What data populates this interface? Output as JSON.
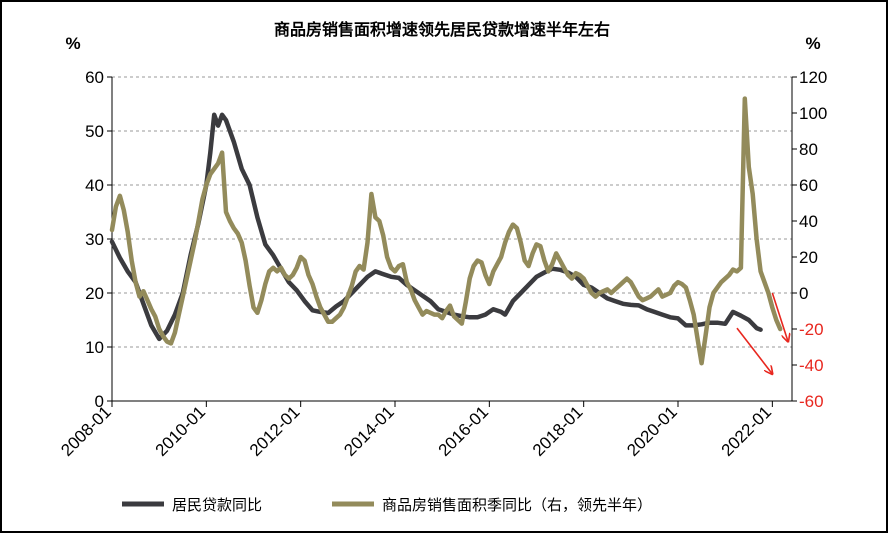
{
  "chart_data": {
    "type": "line",
    "title": "商品房销售面积增速领先居民贷款增速半年左右",
    "y_left_unit": "%",
    "y_right_unit": "%",
    "y_left_range": [
      0,
      60
    ],
    "y_left_ticks": [
      "0",
      "10",
      "20",
      "30",
      "40",
      "50",
      "60"
    ],
    "y_right_range": [
      -60,
      120
    ],
    "y_right_ticks": [
      "-60",
      "-40",
      "-20",
      "0",
      "20",
      "40",
      "60",
      "80",
      "100",
      "120"
    ],
    "x_range": [
      "2008-01",
      "2022-06"
    ],
    "x_ticks": [
      "2008-01",
      "2010-01",
      "2012-01",
      "2014-01",
      "2016-01",
      "2018-01",
      "2020-01",
      "2022-01"
    ],
    "grid": "horizontal dashed",
    "legend_position": "bottom",
    "series": [
      {
        "name": "居民贷款同比",
        "axis": "left",
        "color": "#3b3b3f",
        "points": [
          [
            "2008-01",
            29.5
          ],
          [
            "2008-03",
            26.5
          ],
          [
            "2008-05",
            24
          ],
          [
            "2008-07",
            22
          ],
          [
            "2008-09",
            18
          ],
          [
            "2008-11",
            14
          ],
          [
            "2009-01",
            11.5
          ],
          [
            "2009-03",
            13
          ],
          [
            "2009-05",
            16
          ],
          [
            "2009-07",
            20
          ],
          [
            "2009-09",
            27
          ],
          [
            "2009-11",
            33
          ],
          [
            "2010-01",
            40
          ],
          [
            "2010-02",
            46
          ],
          [
            "2010-03",
            53
          ],
          [
            "2010-04",
            51
          ],
          [
            "2010-05",
            53
          ],
          [
            "2010-06",
            52
          ],
          [
            "2010-08",
            48
          ],
          [
            "2010-10",
            43
          ],
          [
            "2010-12",
            40
          ],
          [
            "2011-02",
            34
          ],
          [
            "2011-04",
            29
          ],
          [
            "2011-06",
            27
          ],
          [
            "2011-08",
            24.5
          ],
          [
            "2011-10",
            22
          ],
          [
            "2011-12",
            20.5
          ],
          [
            "2012-02",
            18.5
          ],
          [
            "2012-04",
            16.8
          ],
          [
            "2012-06",
            16.5
          ],
          [
            "2012-08",
            16.3
          ],
          [
            "2012-10",
            17.5
          ],
          [
            "2012-12",
            18.5
          ],
          [
            "2013-02",
            20
          ],
          [
            "2013-04",
            21.5
          ],
          [
            "2013-06",
            23
          ],
          [
            "2013-08",
            24
          ],
          [
            "2013-10",
            23.5
          ],
          [
            "2013-12",
            23
          ],
          [
            "2014-02",
            22.8
          ],
          [
            "2014-04",
            21.5
          ],
          [
            "2014-06",
            20.5
          ],
          [
            "2014-08",
            19.5
          ],
          [
            "2014-10",
            18.5
          ],
          [
            "2014-12",
            17
          ],
          [
            "2015-02",
            16.5
          ],
          [
            "2015-04",
            16
          ],
          [
            "2015-06",
            15.7
          ],
          [
            "2015-08",
            15.5
          ],
          [
            "2015-10",
            15.5
          ],
          [
            "2015-12",
            16
          ],
          [
            "2016-02",
            17
          ],
          [
            "2016-04",
            16.5
          ],
          [
            "2016-05",
            16
          ],
          [
            "2016-07",
            18.5
          ],
          [
            "2016-09",
            20
          ],
          [
            "2016-11",
            21.5
          ],
          [
            "2017-01",
            23
          ],
          [
            "2017-03",
            23.8
          ],
          [
            "2017-05",
            24.5
          ],
          [
            "2017-07",
            24.3
          ],
          [
            "2017-09",
            23.8
          ],
          [
            "2017-11",
            23
          ],
          [
            "2018-01",
            21.5
          ],
          [
            "2018-03",
            21
          ],
          [
            "2018-05",
            20
          ],
          [
            "2018-07",
            19
          ],
          [
            "2018-09",
            18.5
          ],
          [
            "2018-11",
            18
          ],
          [
            "2019-01",
            17.8
          ],
          [
            "2019-03",
            17.7
          ],
          [
            "2019-05",
            17
          ],
          [
            "2019-07",
            16.5
          ],
          [
            "2019-09",
            16
          ],
          [
            "2019-11",
            15.5
          ],
          [
            "2020-01",
            15.3
          ],
          [
            "2020-03",
            14
          ],
          [
            "2020-05",
            14
          ],
          [
            "2020-07",
            14.2
          ],
          [
            "2020-09",
            14.5
          ],
          [
            "2020-11",
            14.5
          ],
          [
            "2021-01",
            14.3
          ],
          [
            "2021-03",
            16.5
          ],
          [
            "2021-05",
            15.8
          ],
          [
            "2021-07",
            15
          ],
          [
            "2021-09",
            13.5
          ],
          [
            "2021-10",
            13.2
          ]
        ]
      },
      {
        "name": "商品房销售面积季同比（右，领先半年）",
        "axis": "right",
        "color": "#938b5b",
        "points": [
          [
            "2008-01",
            35
          ],
          [
            "2008-02",
            48
          ],
          [
            "2008-03",
            54
          ],
          [
            "2008-04",
            46
          ],
          [
            "2008-05",
            34
          ],
          [
            "2008-06",
            18
          ],
          [
            "2008-07",
            6
          ],
          [
            "2008-08",
            -2
          ],
          [
            "2008-09",
            1
          ],
          [
            "2008-10",
            -4
          ],
          [
            "2008-11",
            -9
          ],
          [
            "2008-12",
            -13
          ],
          [
            "2009-01",
            -20
          ],
          [
            "2009-02",
            -24
          ],
          [
            "2009-03",
            -27
          ],
          [
            "2009-04",
            -28
          ],
          [
            "2009-05",
            -22
          ],
          [
            "2009-06",
            -12
          ],
          [
            "2009-07",
            -2
          ],
          [
            "2009-08",
            8
          ],
          [
            "2009-09",
            18
          ],
          [
            "2009-10",
            28
          ],
          [
            "2009-11",
            40
          ],
          [
            "2009-12",
            52
          ],
          [
            "2010-01",
            60
          ],
          [
            "2010-02",
            66
          ],
          [
            "2010-03",
            69
          ],
          [
            "2010-04",
            72
          ],
          [
            "2010-05",
            78
          ],
          [
            "2010-06",
            45
          ],
          [
            "2010-07",
            40
          ],
          [
            "2010-08",
            36
          ],
          [
            "2010-09",
            33
          ],
          [
            "2010-10",
            28
          ],
          [
            "2010-11",
            18
          ],
          [
            "2010-12",
            4
          ],
          [
            "2011-01",
            -8
          ],
          [
            "2011-02",
            -11
          ],
          [
            "2011-03",
            -4
          ],
          [
            "2011-04",
            5
          ],
          [
            "2011-05",
            12
          ],
          [
            "2011-06",
            14
          ],
          [
            "2011-07",
            12
          ],
          [
            "2011-08",
            14
          ],
          [
            "2011-09",
            10
          ],
          [
            "2011-10",
            8
          ],
          [
            "2011-11",
            10
          ],
          [
            "2011-12",
            14
          ],
          [
            "2012-01",
            20
          ],
          [
            "2012-02",
            18
          ],
          [
            "2012-03",
            10
          ],
          [
            "2012-04",
            5
          ],
          [
            "2012-05",
            -2
          ],
          [
            "2012-06",
            -8
          ],
          [
            "2012-07",
            -12
          ],
          [
            "2012-08",
            -16
          ],
          [
            "2012-09",
            -16
          ],
          [
            "2012-10",
            -14
          ],
          [
            "2012-11",
            -12
          ],
          [
            "2012-12",
            -8
          ],
          [
            "2013-01",
            -2
          ],
          [
            "2013-02",
            4
          ],
          [
            "2013-03",
            12
          ],
          [
            "2013-04",
            15
          ],
          [
            "2013-05",
            13
          ],
          [
            "2013-06",
            28
          ],
          [
            "2013-07",
            55
          ],
          [
            "2013-08",
            42
          ],
          [
            "2013-09",
            40
          ],
          [
            "2013-10",
            32
          ],
          [
            "2013-11",
            20
          ],
          [
            "2013-12",
            14
          ],
          [
            "2014-01",
            12
          ],
          [
            "2014-02",
            15
          ],
          [
            "2014-03",
            16
          ],
          [
            "2014-04",
            6
          ],
          [
            "2014-05",
            2
          ],
          [
            "2014-06",
            -4
          ],
          [
            "2014-07",
            -8
          ],
          [
            "2014-08",
            -12
          ],
          [
            "2014-09",
            -10
          ],
          [
            "2014-10",
            -11
          ],
          [
            "2014-11",
            -12
          ],
          [
            "2014-12",
            -12
          ],
          [
            "2015-01",
            -14
          ],
          [
            "2015-02",
            -10
          ],
          [
            "2015-03",
            -7
          ],
          [
            "2015-04",
            -13
          ],
          [
            "2015-05",
            -15
          ],
          [
            "2015-06",
            -17
          ],
          [
            "2015-07",
            -5
          ],
          [
            "2015-08",
            8
          ],
          [
            "2015-09",
            15
          ],
          [
            "2015-10",
            18
          ],
          [
            "2015-11",
            17
          ],
          [
            "2015-12",
            10
          ],
          [
            "2016-01",
            5
          ],
          [
            "2016-02",
            12
          ],
          [
            "2016-03",
            16
          ],
          [
            "2016-04",
            20
          ],
          [
            "2016-05",
            28
          ],
          [
            "2016-06",
            34
          ],
          [
            "2016-07",
            38
          ],
          [
            "2016-08",
            36
          ],
          [
            "2016-09",
            28
          ],
          [
            "2016-10",
            18
          ],
          [
            "2016-11",
            15
          ],
          [
            "2016-12",
            22
          ],
          [
            "2017-01",
            27
          ],
          [
            "2017-02",
            26
          ],
          [
            "2017-03",
            18
          ],
          [
            "2017-04",
            12
          ],
          [
            "2017-05",
            16
          ],
          [
            "2017-06",
            22
          ],
          [
            "2017-07",
            18
          ],
          [
            "2017-08",
            14
          ],
          [
            "2017-09",
            10
          ],
          [
            "2017-10",
            8
          ],
          [
            "2017-11",
            11
          ],
          [
            "2017-12",
            10
          ],
          [
            "2018-01",
            8
          ],
          [
            "2018-02",
            4
          ],
          [
            "2018-03",
            0
          ],
          [
            "2018-04",
            -2
          ],
          [
            "2018-05",
            0
          ],
          [
            "2018-06",
            1
          ],
          [
            "2018-07",
            2
          ],
          [
            "2018-08",
            0
          ],
          [
            "2018-09",
            2
          ],
          [
            "2018-10",
            4
          ],
          [
            "2018-11",
            6
          ],
          [
            "2018-12",
            8
          ],
          [
            "2019-01",
            6
          ],
          [
            "2019-02",
            2
          ],
          [
            "2019-03",
            -2
          ],
          [
            "2019-04",
            -4
          ],
          [
            "2019-05",
            -3
          ],
          [
            "2019-06",
            -2
          ],
          [
            "2019-07",
            0
          ],
          [
            "2019-08",
            2
          ],
          [
            "2019-09",
            -2
          ],
          [
            "2019-10",
            -1
          ],
          [
            "2019-11",
            0
          ],
          [
            "2019-12",
            4
          ],
          [
            "2020-01",
            6
          ],
          [
            "2020-02",
            5
          ],
          [
            "2020-03",
            3
          ],
          [
            "2020-04",
            -4
          ],
          [
            "2020-05",
            -12
          ],
          [
            "2020-06",
            -26
          ],
          [
            "2020-07",
            -39
          ],
          [
            "2020-08",
            -24
          ],
          [
            "2020-09",
            -8
          ],
          [
            "2020-10",
            0
          ],
          [
            "2020-11",
            3
          ],
          [
            "2020-12",
            6
          ],
          [
            "2021-01",
            8
          ],
          [
            "2021-02",
            10
          ],
          [
            "2021-03",
            13
          ],
          [
            "2021-04",
            12
          ],
          [
            "2021-05",
            14
          ],
          [
            "2021-06",
            108
          ],
          [
            "2021-07",
            70
          ],
          [
            "2021-08",
            55
          ],
          [
            "2021-09",
            30
          ],
          [
            "2021-10",
            12
          ],
          [
            "2021-11",
            6
          ],
          [
            "2021-12",
            0
          ],
          [
            "2022-01",
            -8
          ],
          [
            "2022-02",
            -15
          ],
          [
            "2022-03",
            -20
          ]
        ]
      }
    ],
    "annotations": [
      {
        "type": "arrow",
        "color": "#e8271f",
        "axis": "left",
        "from": [
          "2021-04",
          13.5
        ],
        "to": [
          "2022-01",
          5
        ]
      },
      {
        "type": "arrow",
        "color": "#e8271f",
        "axis": "right",
        "from": [
          "2022-01",
          0
        ],
        "to": [
          "2022-05",
          -27
        ]
      }
    ]
  }
}
